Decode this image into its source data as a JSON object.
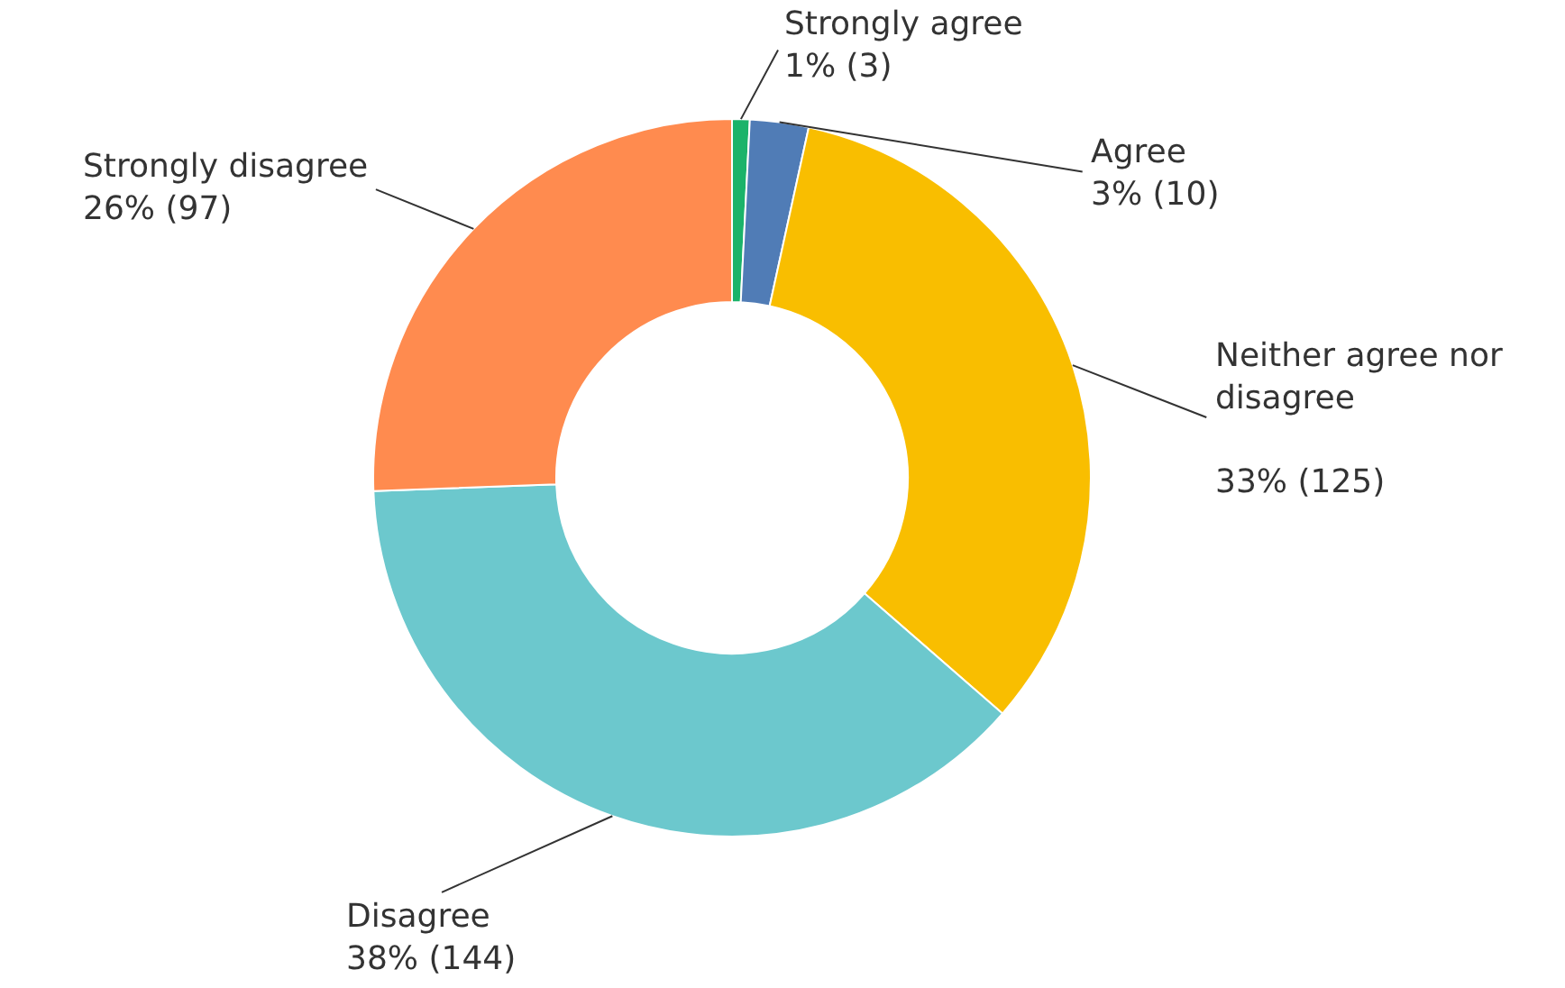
{
  "chart_data": {
    "type": "donut",
    "categories": [
      "Strongly agree",
      "Agree",
      "Neither agree nor disagree",
      "Disagree",
      "Strongly disagree"
    ],
    "values": [
      3,
      10,
      125,
      144,
      97
    ],
    "colors": [
      "#1bb36a",
      "#507cb6",
      "#f9be00",
      "#6cc8cd",
      "#ff8b4f"
    ],
    "value_labels": [
      "1% (3)",
      "3% (10)",
      "33% (125)",
      "38% (144)",
      "26% (97)"
    ]
  }
}
